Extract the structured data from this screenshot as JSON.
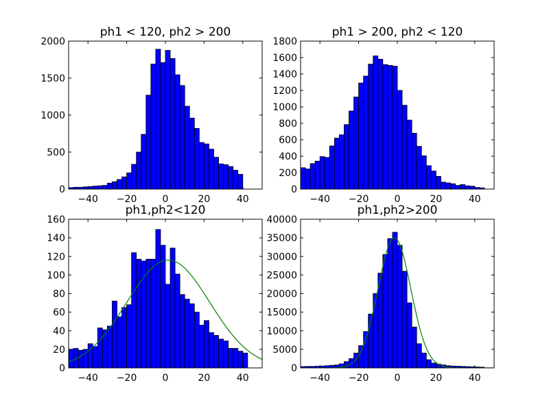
{
  "figure": {
    "background": "#ffffff",
    "bar_color": "#0000ff",
    "bar_edge": "#000000",
    "fit_color": "#008000"
  },
  "chart_data": [
    {
      "type": "bar",
      "title": "ph1 < 120, ph2 > 200",
      "xlim": [
        -50,
        50
      ],
      "ylim": [
        0,
        2000
      ],
      "xticks": [
        -40,
        -20,
        0,
        20,
        40
      ],
      "yticks": [
        0,
        500,
        1000,
        1500,
        2000
      ],
      "bin_start": -52.5,
      "bin_width": 2.5,
      "values": [
        15,
        20,
        25,
        25,
        30,
        35,
        40,
        45,
        50,
        80,
        100,
        130,
        165,
        220,
        335,
        500,
        740,
        1270,
        1690,
        1890,
        1710,
        1875,
        1765,
        1545,
        1400,
        1120,
        960,
        820,
        630,
        610,
        540,
        430,
        340,
        330,
        305,
        255,
        200
      ],
      "xlabel": "",
      "ylabel": "",
      "grid": false
    },
    {
      "type": "bar",
      "title": "ph1 > 200, ph2 < 120",
      "xlim": [
        -50,
        50
      ],
      "ylim": [
        0,
        1800
      ],
      "xticks": [
        -40,
        -20,
        0,
        20,
        40
      ],
      "yticks": [
        0,
        200,
        400,
        600,
        800,
        1000,
        1200,
        1400,
        1600,
        1800
      ],
      "bin_start": -52.5,
      "bin_width": 2.5,
      "values": [
        200,
        260,
        245,
        310,
        340,
        395,
        385,
        525,
        620,
        660,
        785,
        950,
        1120,
        1290,
        1375,
        1520,
        1620,
        1580,
        1515,
        1505,
        1495,
        1200,
        1020,
        840,
        680,
        520,
        405,
        285,
        220,
        155,
        85,
        75,
        65,
        45,
        55,
        40,
        35,
        20,
        15
      ],
      "xlabel": "",
      "ylabel": "",
      "grid": false
    },
    {
      "type": "bar",
      "title": "ph1,ph2<120",
      "xlim": [
        -50,
        50
      ],
      "ylim": [
        0,
        160
      ],
      "xticks": [
        -40,
        -20,
        0,
        20,
        40
      ],
      "yticks": [
        0,
        20,
        40,
        60,
        80,
        100,
        120,
        140,
        160
      ],
      "bin_start": -52.5,
      "bin_width": 2.5,
      "values": [
        17,
        20,
        21,
        19,
        20,
        26,
        23,
        43,
        41,
        45,
        72,
        55,
        65,
        68,
        124,
        117,
        115,
        117,
        117,
        149,
        132,
        90,
        129,
        101,
        79,
        74,
        69,
        60,
        46,
        51,
        38,
        35,
        31,
        29,
        21,
        21,
        18,
        16
      ],
      "fit": {
        "type": "gaussian",
        "mean": 1.5,
        "sigma": 21.5,
        "amplitude": 116
      },
      "xlabel": "",
      "ylabel": "",
      "grid": false
    },
    {
      "type": "bar",
      "title": "ph1,ph2>200",
      "xlim": [
        -50,
        50
      ],
      "ylim": [
        0,
        40000
      ],
      "xticks": [
        -40,
        -20,
        0,
        20,
        40
      ],
      "yticks": [
        0,
        5000,
        10000,
        15000,
        20000,
        25000,
        30000,
        35000,
        40000
      ],
      "bin_start": -52.5,
      "bin_width": 2.5,
      "values": [
        300,
        350,
        400,
        400,
        450,
        500,
        600,
        700,
        800,
        1100,
        1700,
        2500,
        4000,
        6000,
        9800,
        14500,
        20000,
        25500,
        30500,
        34800,
        36500,
        33000,
        26000,
        17500,
        11000,
        6500,
        4000,
        2200,
        1300,
        1000,
        800,
        600,
        500,
        450,
        400,
        350,
        300,
        250,
        200
      ],
      "fit": {
        "type": "gaussian",
        "mean": -1.5,
        "sigma": 8.5,
        "amplitude": 35000
      },
      "xlabel": "",
      "ylabel": "",
      "grid": false
    }
  ]
}
